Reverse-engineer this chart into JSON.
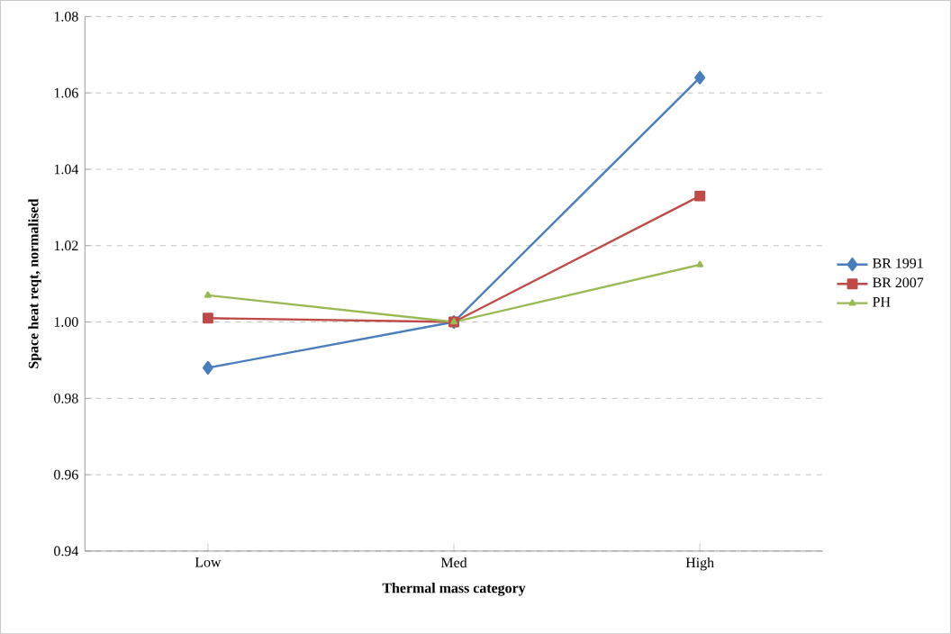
{
  "chart_data": {
    "type": "line",
    "xlabel": "Thermal mass category",
    "ylabel": "Space heat reqt, normalised",
    "categories": [
      "Low",
      "Med",
      "High"
    ],
    "series": [
      {
        "name": "BR 1991",
        "color": "#4a7ebb",
        "marker": "diamond",
        "values": [
          0.988,
          1.0,
          1.064
        ]
      },
      {
        "name": "BR 2007",
        "color": "#be4b48",
        "marker": "square",
        "values": [
          1.001,
          1.0,
          1.033
        ]
      },
      {
        "name": "PH",
        "color": "#98b954",
        "marker": "triangle",
        "values": [
          1.007,
          1.0,
          1.015
        ]
      }
    ],
    "ylim": [
      0.94,
      1.08
    ],
    "yticks": [
      {
        "value": 0.94,
        "label": "0.94"
      },
      {
        "value": 0.96,
        "label": "0.96"
      },
      {
        "value": 0.98,
        "label": "0.98"
      },
      {
        "value": 1.0,
        "label": "1.00"
      },
      {
        "value": 1.02,
        "label": "1.02"
      },
      {
        "value": 1.04,
        "label": "1.04"
      },
      {
        "value": 1.06,
        "label": "1.06"
      },
      {
        "value": 1.08,
        "label": "1.08"
      }
    ],
    "grid": "y",
    "legend": "right",
    "line_style": "solid"
  }
}
